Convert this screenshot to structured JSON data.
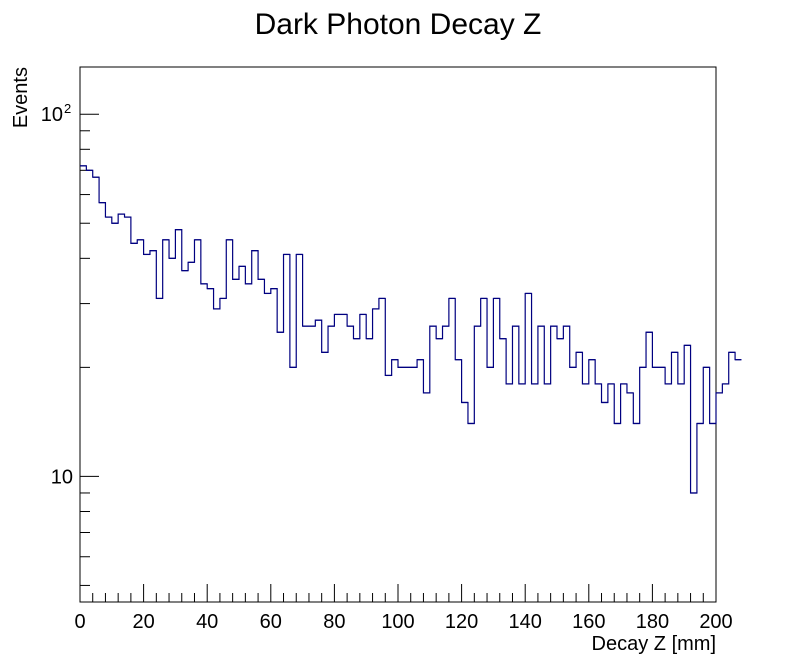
{
  "chart_data": {
    "type": "histogram",
    "title": "Dark Photon Decay Z",
    "xlabel": "Decay Z [mm]",
    "ylabel": "Events",
    "xlim": [
      0,
      200
    ],
    "ylim": [
      4.5,
      135
    ],
    "yscale": "log",
    "bin_width": 2,
    "line_color": "#000080",
    "x_ticks": [
      0,
      20,
      40,
      60,
      80,
      100,
      120,
      140,
      160,
      180,
      200
    ],
    "y_tick_labels": [
      {
        "value": 10,
        "base": "10",
        "exp": ""
      },
      {
        "value": 100,
        "base": "10",
        "exp": "2"
      }
    ],
    "values": [
      72,
      70,
      67,
      57,
      52,
      50,
      53,
      52,
      44,
      45,
      41,
      42,
      31,
      45,
      40,
      48,
      37,
      39,
      45,
      34,
      33,
      29,
      31,
      45,
      35,
      38,
      34,
      42,
      35,
      32,
      33,
      25,
      41,
      20,
      41,
      26,
      26,
      27,
      22,
      26,
      28,
      28,
      26,
      24,
      28,
      24,
      29,
      31,
      19,
      21,
      20,
      20,
      20,
      21,
      17,
      26,
      24,
      26,
      31,
      21,
      16,
      14,
      26,
      31,
      20,
      31,
      24,
      18,
      26,
      18,
      32,
      18,
      26,
      18,
      26,
      24,
      26,
      20,
      22,
      18,
      21,
      18,
      16,
      18,
      14,
      18,
      17,
      14,
      20,
      25,
      20,
      20,
      18,
      22,
      18,
      23,
      9,
      14,
      20,
      14,
      17,
      18,
      22,
      21
    ]
  }
}
